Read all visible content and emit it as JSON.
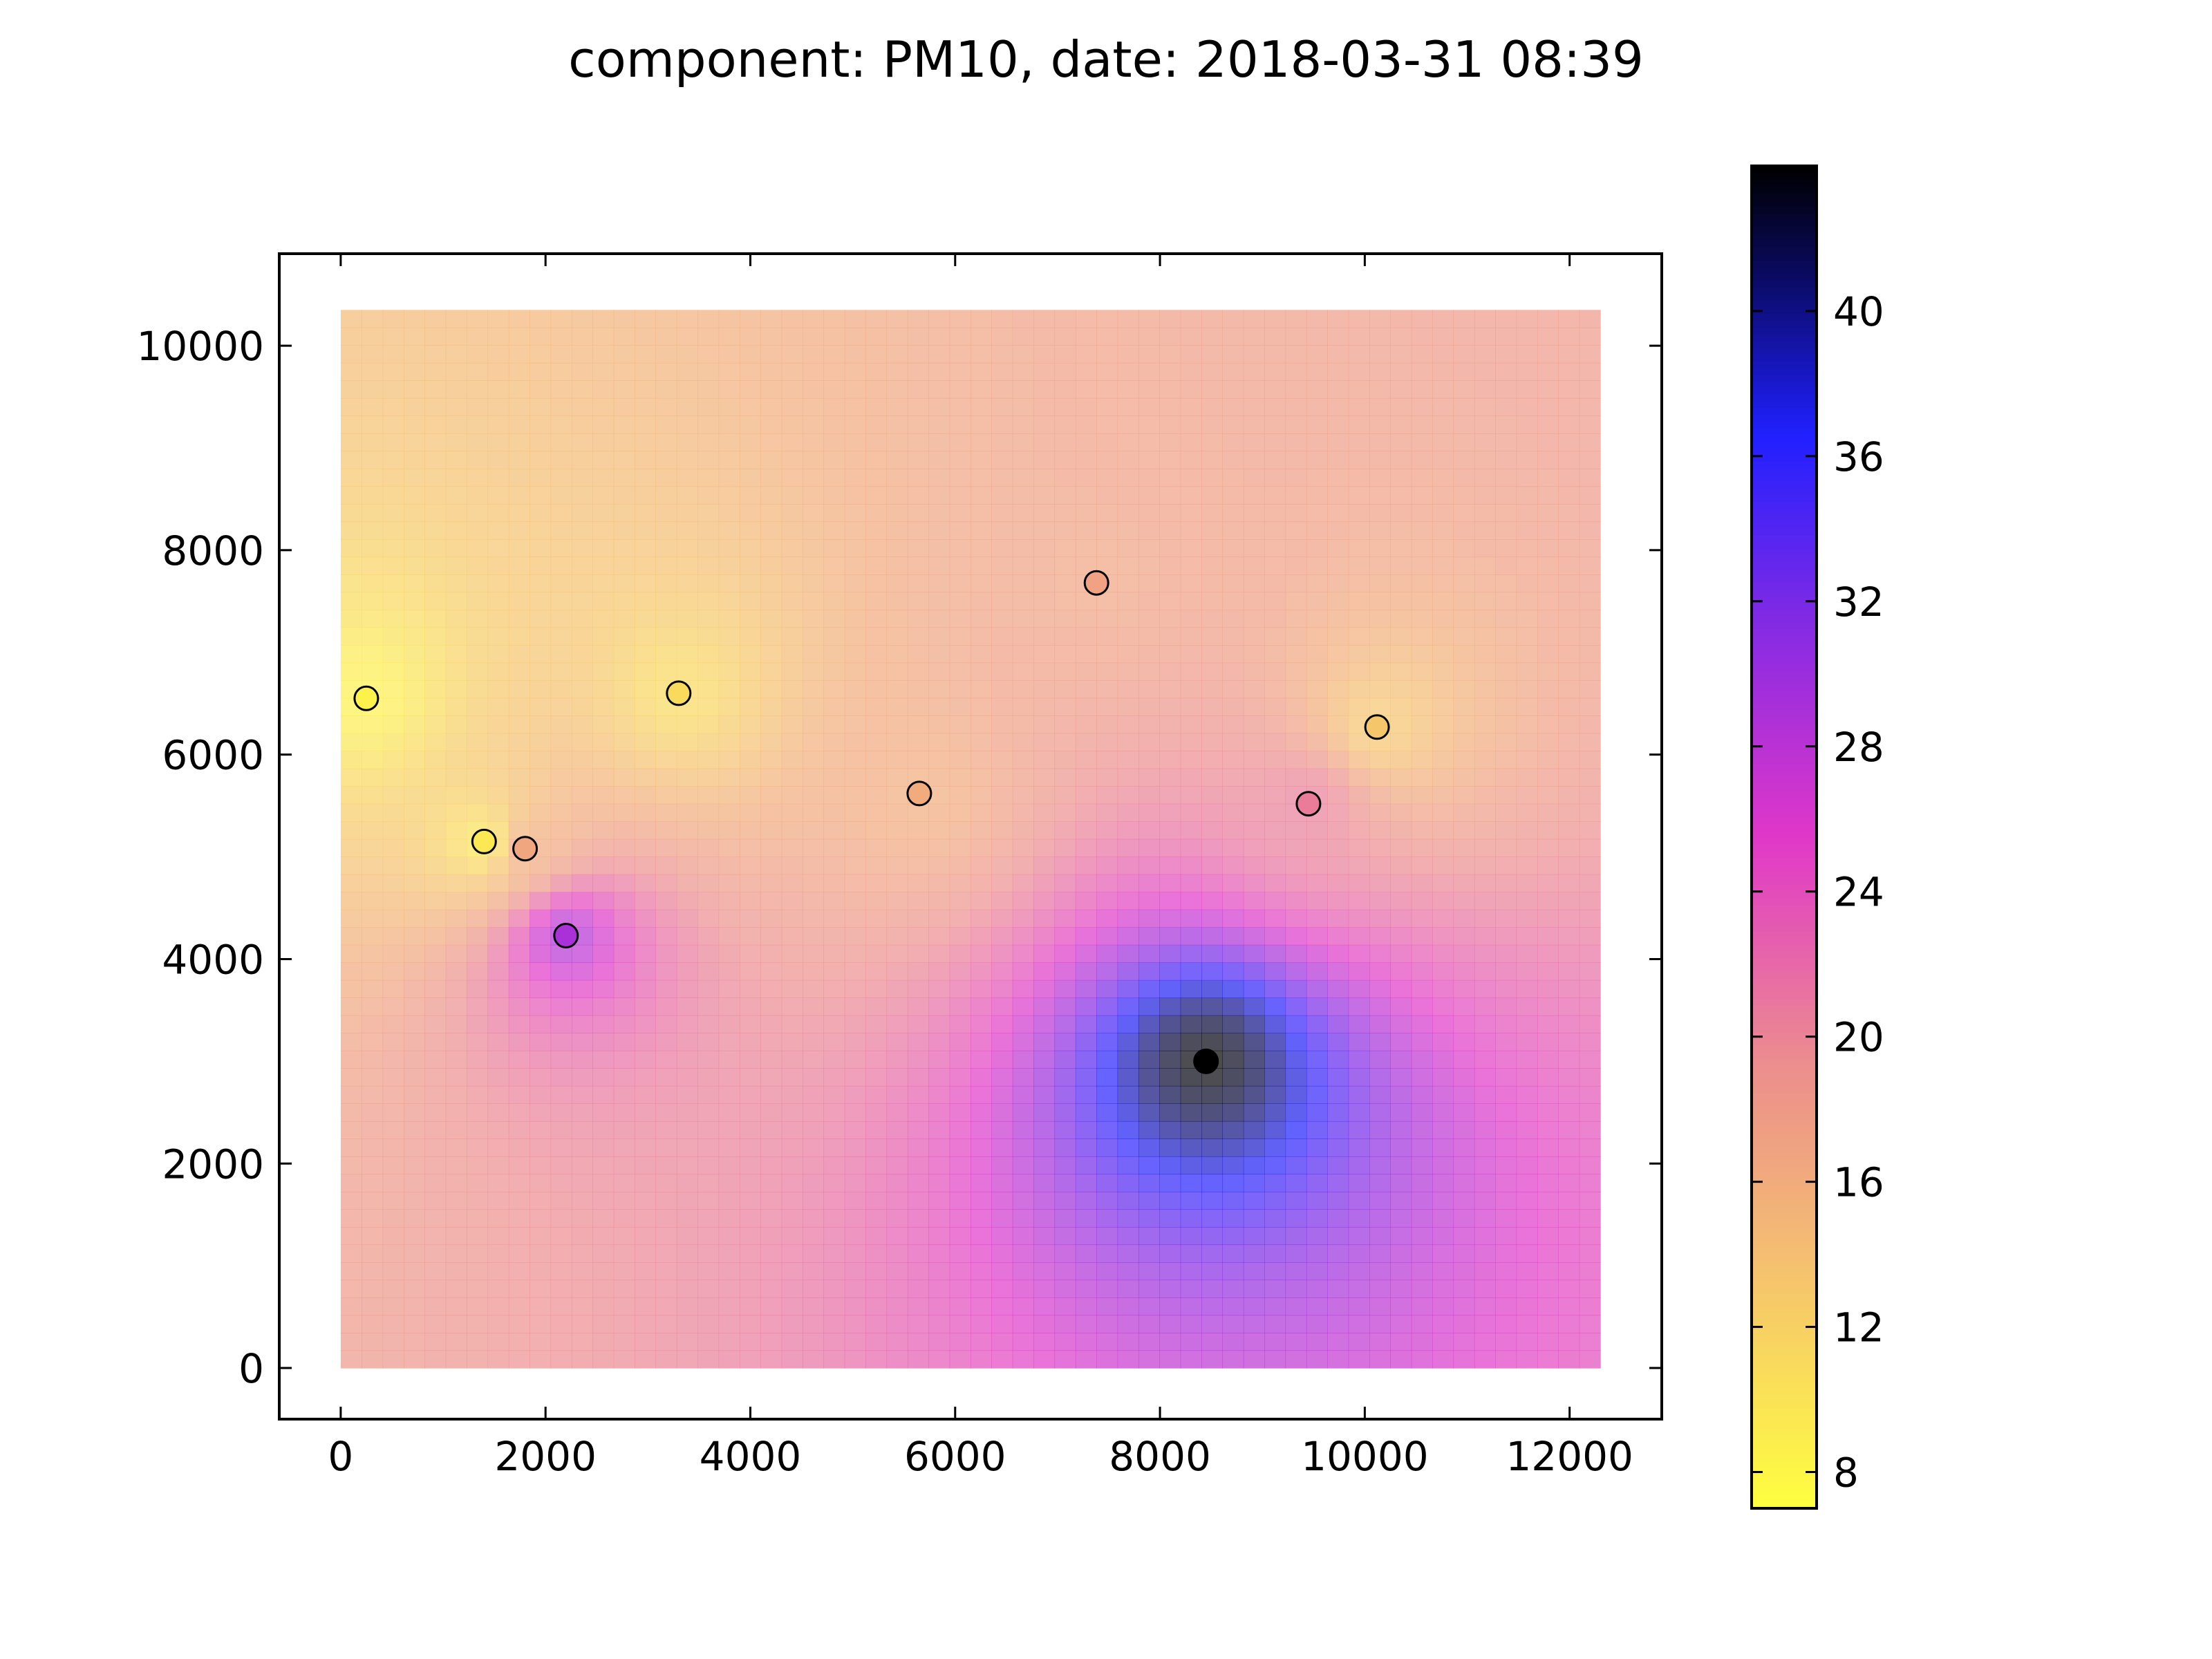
{
  "chart_data": {
    "type": "heatmap",
    "title": "component: PM10, date: 2018-03-31 08:39",
    "xlabel": "",
    "ylabel": "",
    "xlim": [
      -600,
      12900
    ],
    "ylim": [
      -500,
      10900
    ],
    "grid_extent": {
      "x": [
        0,
        12300
      ],
      "y": [
        0,
        10350
      ]
    },
    "grid_resolution": 60,
    "xticks": [
      0,
      2000,
      4000,
      6000,
      8000,
      10000,
      12000
    ],
    "yticks": [
      0,
      2000,
      4000,
      6000,
      8000,
      10000
    ],
    "grid": false,
    "colormap": "gnuplot2_r",
    "surface_alpha": 0.7,
    "colorbar": {
      "vmin": 7,
      "vmax": 44,
      "ticks": [
        8,
        12,
        16,
        20,
        24,
        28,
        32,
        36,
        40
      ],
      "position": "right"
    },
    "stations": [
      {
        "x": 250,
        "y": 6550,
        "value": 8.5
      },
      {
        "x": 1400,
        "y": 5150,
        "value": 9.5
      },
      {
        "x": 1800,
        "y": 5080,
        "value": 16.5
      },
      {
        "x": 2200,
        "y": 4230,
        "value": 29
      },
      {
        "x": 3300,
        "y": 6600,
        "value": 11
      },
      {
        "x": 5650,
        "y": 5620,
        "value": 16
      },
      {
        "x": 7380,
        "y": 7680,
        "value": 17
      },
      {
        "x": 8450,
        "y": 3000,
        "value": 44
      },
      {
        "x": 9450,
        "y": 5520,
        "value": 20.5
      },
      {
        "x": 10120,
        "y": 6270,
        "value": 13
      }
    ]
  },
  "colors": {
    "cmap_stops": [
      [
        0.0,
        "#ffff40"
      ],
      [
        0.18,
        "#f5c16f"
      ],
      [
        0.33,
        "#ec8e8e"
      ],
      [
        0.5,
        "#e038c8"
      ],
      [
        0.65,
        "#8a2be2"
      ],
      [
        0.8,
        "#2020ff"
      ],
      [
        0.92,
        "#0a0a60"
      ],
      [
        1.0,
        "#000000"
      ]
    ]
  }
}
